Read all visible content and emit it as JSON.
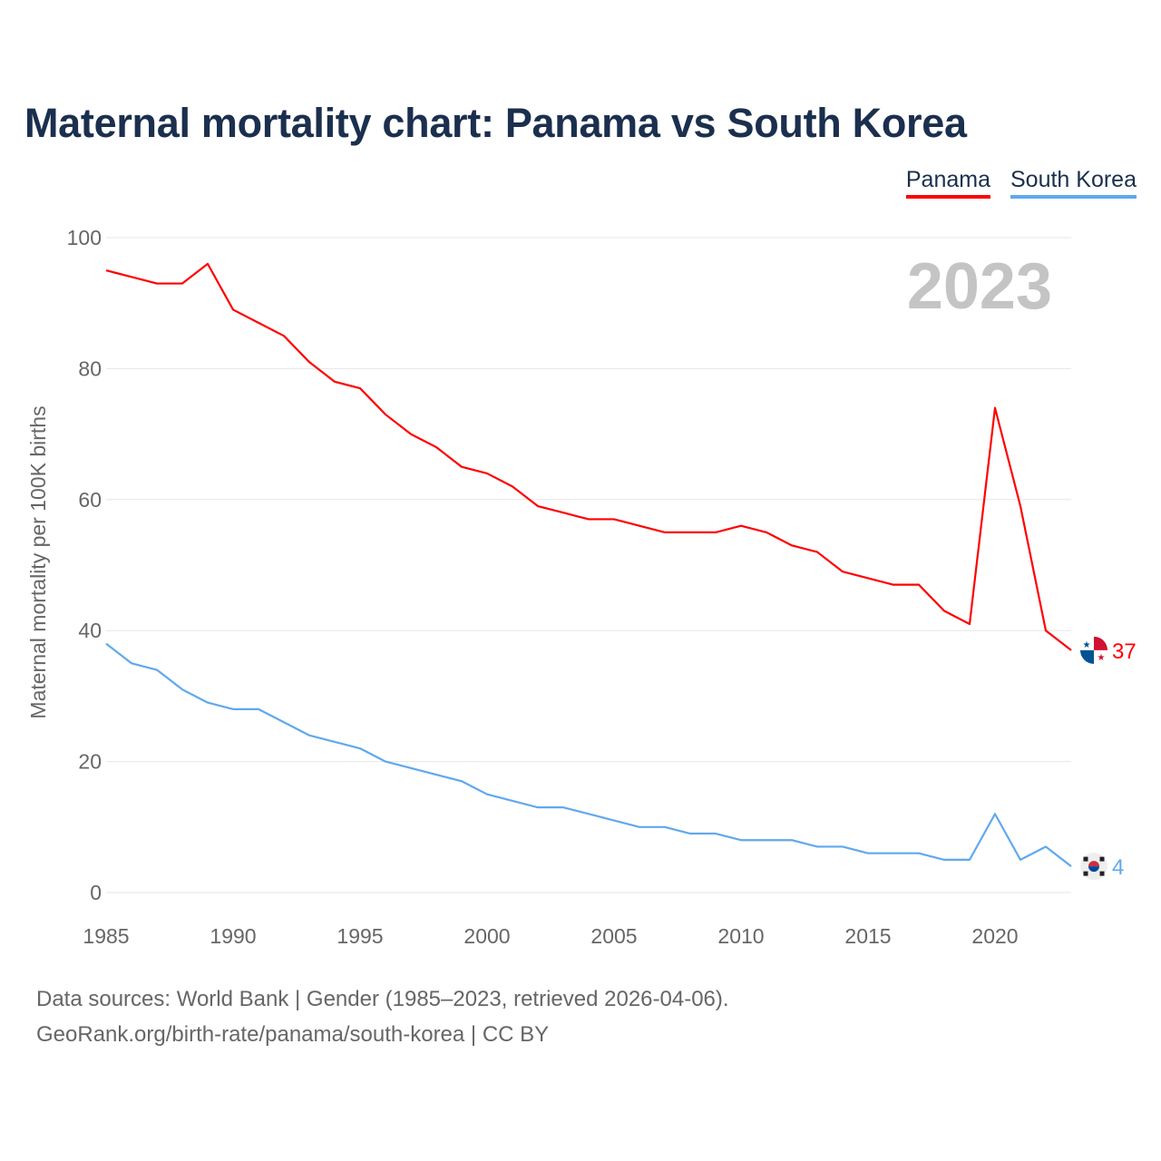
{
  "title": "Maternal mortality chart: Panama vs South Korea",
  "footer": {
    "line1": "Data sources: World Bank | Gender (1985–2023, retrieved 2026-04-06).",
    "line2": "GeoRank.org/birth-rate/panama/south-korea | CC BY"
  },
  "chart_data": {
    "type": "line",
    "title": "Maternal mortality chart: Panama vs South Korea",
    "ylabel": "Maternal mortality per 100K births",
    "xlabel": "",
    "ylim": [
      0,
      100
    ],
    "xlim": [
      1985,
      2023
    ],
    "yticks": [
      "0",
      "20",
      "40",
      "60",
      "80",
      "100"
    ],
    "xticks": [
      "1985",
      "1990",
      "1995",
      "2000",
      "2005",
      "2010",
      "2015",
      "2020"
    ],
    "year_label": "2023",
    "grid": true,
    "legend_position": "top-right",
    "x": [
      1985,
      1986,
      1987,
      1988,
      1989,
      1990,
      1991,
      1992,
      1993,
      1994,
      1995,
      1996,
      1997,
      1998,
      1999,
      2000,
      2001,
      2002,
      2003,
      2004,
      2005,
      2006,
      2007,
      2008,
      2009,
      2010,
      2011,
      2012,
      2013,
      2014,
      2015,
      2016,
      2017,
      2018,
      2019,
      2020,
      2021,
      2022,
      2023
    ],
    "series": [
      {
        "name": "Panama",
        "color": "#ff0000",
        "end_label": "37",
        "values": [
          95,
          94,
          93,
          93,
          96,
          89,
          87,
          85,
          81,
          78,
          77,
          73,
          70,
          68,
          65,
          64,
          62,
          59,
          58,
          57,
          57,
          56,
          55,
          55,
          55,
          56,
          55,
          53,
          52,
          49,
          48,
          47,
          47,
          43,
          41,
          74,
          59,
          40,
          37
        ]
      },
      {
        "name": "South Korea",
        "color": "#5fa8ee",
        "end_label": "4",
        "values": [
          38,
          35,
          34,
          31,
          29,
          28,
          28,
          26,
          24,
          23,
          22,
          20,
          19,
          18,
          17,
          15,
          14,
          13,
          13,
          12,
          11,
          10,
          10,
          9,
          9,
          8,
          8,
          8,
          7,
          7,
          6,
          6,
          6,
          5,
          5,
          12,
          5,
          7,
          4
        ]
      }
    ]
  }
}
